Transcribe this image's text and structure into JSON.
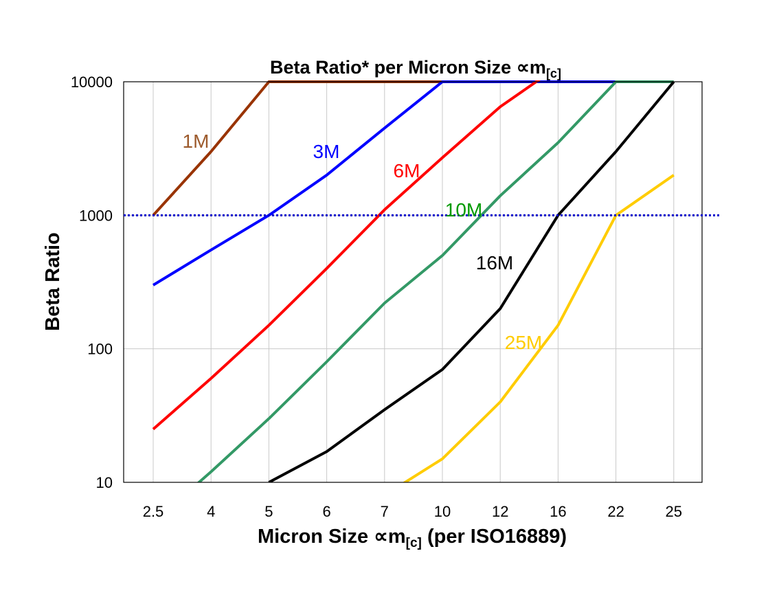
{
  "chart_data": {
    "type": "line",
    "title": "Beta Ratio* per Micron Size ∝m",
    "title_sub": "[c]",
    "xlabel": "Micron Size ∝m",
    "xlabel_sub": "[c]",
    "xlabel_suffix": " (per ISO16889)",
    "ylabel": "Beta Ratio",
    "y_scale": "log",
    "ylim": [
      10,
      10000
    ],
    "y_ticks": [
      "10",
      "100",
      "1000",
      "10000"
    ],
    "categories": [
      "2.5",
      "4",
      "5",
      "6",
      "7",
      "10",
      "12",
      "16",
      "22",
      "25"
    ],
    "grid": true,
    "reference_line": {
      "y": 1000,
      "color": "#0000cc",
      "style": "dotted"
    },
    "series": [
      {
        "name": "1M",
        "color": "#993300",
        "label_color": "#9c5a2c",
        "values": [
          1000,
          3000,
          10000,
          10000,
          10000,
          10000,
          null,
          null,
          null,
          null
        ]
      },
      {
        "name": "3M",
        "color": "#0000ff",
        "label_color": "#0000ff",
        "values": [
          300,
          550,
          1000,
          2000,
          4500,
          10000,
          10000,
          10000,
          10000,
          null
        ]
      },
      {
        "name": "6M",
        "color": "#ff0000",
        "label_color": "#ff0000",
        "values": [
          25,
          60,
          150,
          400,
          1100,
          2700,
          6500,
          13000,
          null,
          null
        ]
      },
      {
        "name": "10M",
        "color": "#339966",
        "label_color": "#009900",
        "values": [
          5,
          12,
          30,
          80,
          220,
          500,
          1400,
          3500,
          10000,
          10000
        ]
      },
      {
        "name": "16M",
        "color": "#000000",
        "label_color": "#000000",
        "values": [
          null,
          null,
          10,
          17,
          35,
          70,
          200,
          1000,
          3000,
          10000
        ]
      },
      {
        "name": "25M",
        "color": "#ffcc00",
        "label_color": "#ffcc00",
        "values": [
          null,
          null,
          null,
          null,
          8,
          15,
          40,
          150,
          1000,
          2000
        ]
      }
    ]
  }
}
